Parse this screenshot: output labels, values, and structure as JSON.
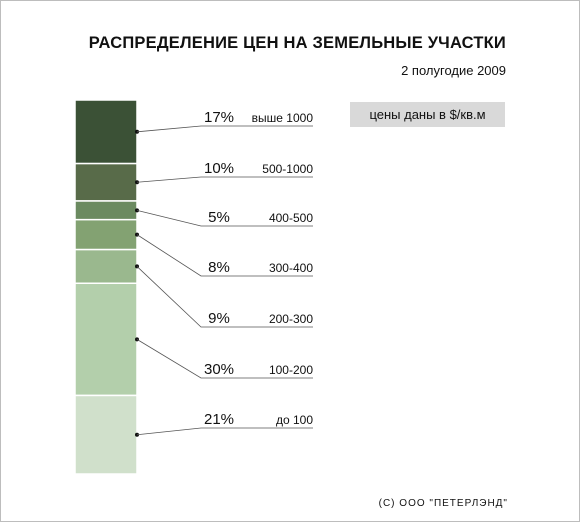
{
  "title": "РАСПРЕДЕЛЕНИЕ ЦЕН НА ЗЕМЕЛЬНЫЕ УЧАСТКИ",
  "subtitle": "2 полугодие 2009",
  "price_note": "цены даны в $/кв.м",
  "copyright": "(С) ООО \"ПЕТЕРЛЭНД\"",
  "chart_data": {
    "type": "bar",
    "stacked": true,
    "unit": "%",
    "categories": [
      "выше 1000",
      "500-1000",
      "400-500",
      "300-400",
      "200-300",
      "100-200",
      "до 100"
    ],
    "values": [
      17,
      10,
      5,
      8,
      9,
      30,
      21
    ],
    "value_labels": [
      "17%",
      "10%",
      "5%",
      "8%",
      "9%",
      "30%",
      "21%"
    ],
    "colors": [
      "#3b5136",
      "#586b49",
      "#6b8a60",
      "#83a272",
      "#9ab88e",
      "#b3cfab",
      "#d0e0cb"
    ]
  }
}
